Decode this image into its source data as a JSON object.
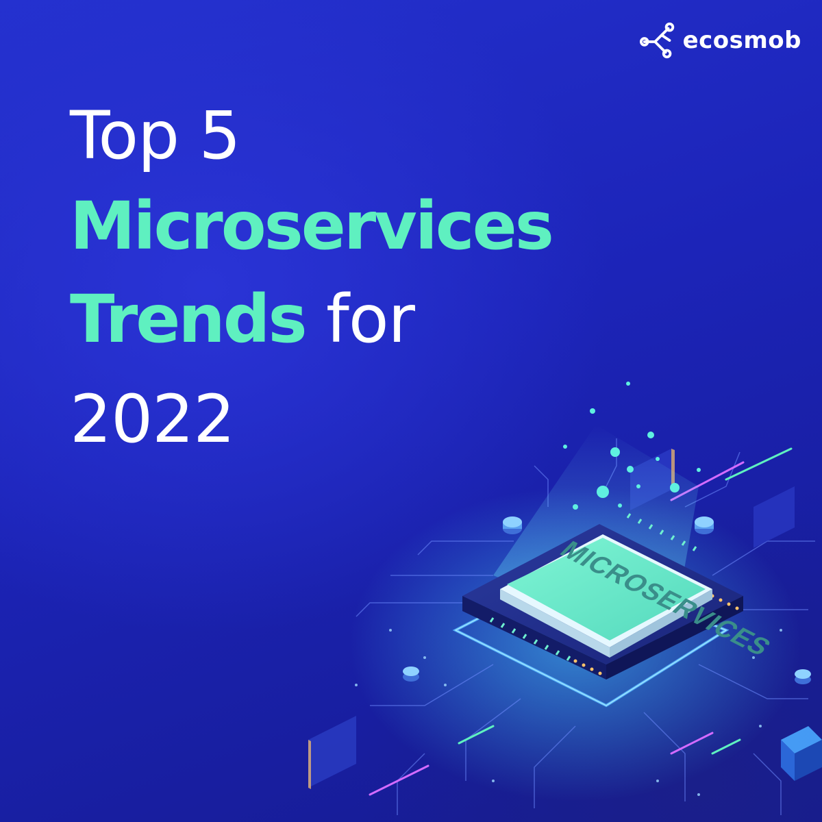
{
  "brand": {
    "name": "ecosmob",
    "icon": "ecosmob-logo-icon"
  },
  "headline": {
    "line1": "Top 5",
    "line2": "Microservices",
    "line3_accent": "Trends",
    "line3_plain": "for",
    "line4": "2022"
  },
  "illustration": {
    "chip_label": "MICROSERVICES",
    "icon": "cpu-chip-icon"
  },
  "colors": {
    "background": "#1f2ac4",
    "accent": "#5ff0c0",
    "text": "#ffffff"
  }
}
